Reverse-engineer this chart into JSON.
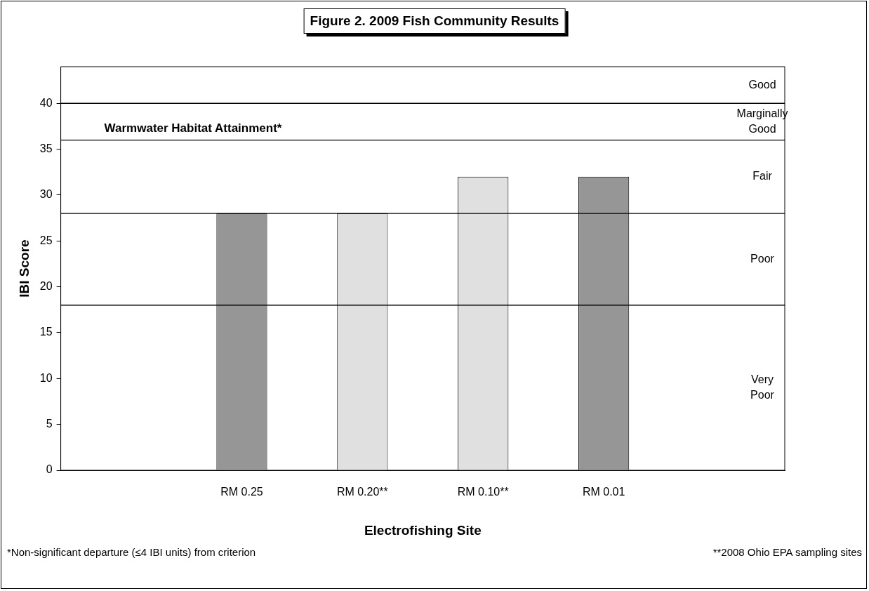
{
  "chart_data": {
    "type": "bar",
    "title": "Figure 2. 2009 Fish Community Results",
    "categories": [
      null,
      "RM 0.25",
      "RM 0.20**",
      "RM 0.10**",
      "RM 0.01",
      null
    ],
    "values": [
      null,
      28,
      28,
      32,
      32,
      null
    ],
    "colors": [
      "#969696",
      "#969696",
      "#e0e0e0",
      "#e0e0e0",
      "#969696",
      "#969696"
    ],
    "xlabel": "Electrofishing Site",
    "ylabel": "IBI Score",
    "ylim": [
      0,
      44
    ],
    "yticks": [
      0,
      5,
      10,
      15,
      20,
      25,
      30,
      35,
      40
    ],
    "grid": false,
    "legend": false,
    "ref_lines": [
      {
        "axis": "y",
        "value": 18,
        "color": "#000000"
      },
      {
        "axis": "y",
        "value": 28,
        "color": "#000000"
      },
      {
        "axis": "y",
        "value": 36,
        "label": "Warmwater Habitat Attainment*",
        "color": "#000000"
      },
      {
        "axis": "y",
        "value": 40,
        "color": "#000000"
      }
    ],
    "annotations": [
      "Very Poor",
      "Poor",
      "Fair",
      "Marginally Good",
      "Good",
      "*Non-significant departure (≤4 IBI units) from criterion",
      "**2008 Ohio EPA sampling sites"
    ]
  }
}
